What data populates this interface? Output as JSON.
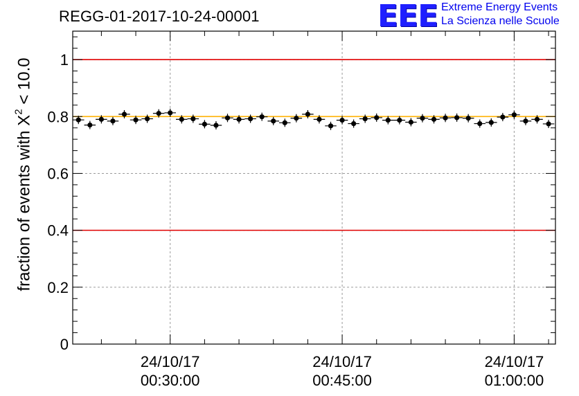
{
  "title": "REGG-01-2017-10-24-00001",
  "logo": {
    "mark": "EEE",
    "line1": "Extreme Energy Events",
    "line2": "La Scienza nelle Scuole",
    "color": "#1f1fff"
  },
  "chart_data": {
    "type": "scatter",
    "ylabel_prefix": "fraction of events with ",
    "ylabel_symbol": "X",
    "ylabel_sup": "2",
    "ylabel_suffix": " < 10.0",
    "ylim": [
      0,
      1.1
    ],
    "yticks": [
      "0",
      "0.2",
      "0.4",
      "0.6",
      "0.8",
      "1"
    ],
    "ytick_values": [
      0,
      0.2,
      0.4,
      0.6,
      0.8,
      1.0
    ],
    "xlim_minutes": [
      21.5,
      63.6
    ],
    "xticks": [
      {
        "minute": 30,
        "date": "24/10/17",
        "time": "00:30:00"
      },
      {
        "minute": 45,
        "date": "24/10/17",
        "time": "00:45:00"
      },
      {
        "minute": 60,
        "date": "24/10/17",
        "time": "01:00:00"
      }
    ],
    "grid": true,
    "reference_lines": [
      {
        "y": 1.0,
        "color": "#e00000"
      },
      {
        "y": 0.4,
        "color": "#e00000"
      },
      {
        "y": 0.8,
        "color": "#ffb000"
      }
    ],
    "series": [
      {
        "marker_color": "#000000",
        "x_start_minute": 21.5,
        "bin_width_minutes": 1.0,
        "values": [
          0.788,
          0.77,
          0.79,
          0.784,
          0.808,
          0.788,
          0.792,
          0.811,
          0.813,
          0.79,
          0.792,
          0.773,
          0.769,
          0.795,
          0.79,
          0.792,
          0.799,
          0.784,
          0.778,
          0.794,
          0.808,
          0.79,
          0.767,
          0.787,
          0.775,
          0.792,
          0.796,
          0.787,
          0.787,
          0.78,
          0.794,
          0.79,
          0.795,
          0.796,
          0.794,
          0.775,
          0.779,
          0.798,
          0.806,
          0.784,
          0.79,
          0.774
        ]
      }
    ]
  }
}
